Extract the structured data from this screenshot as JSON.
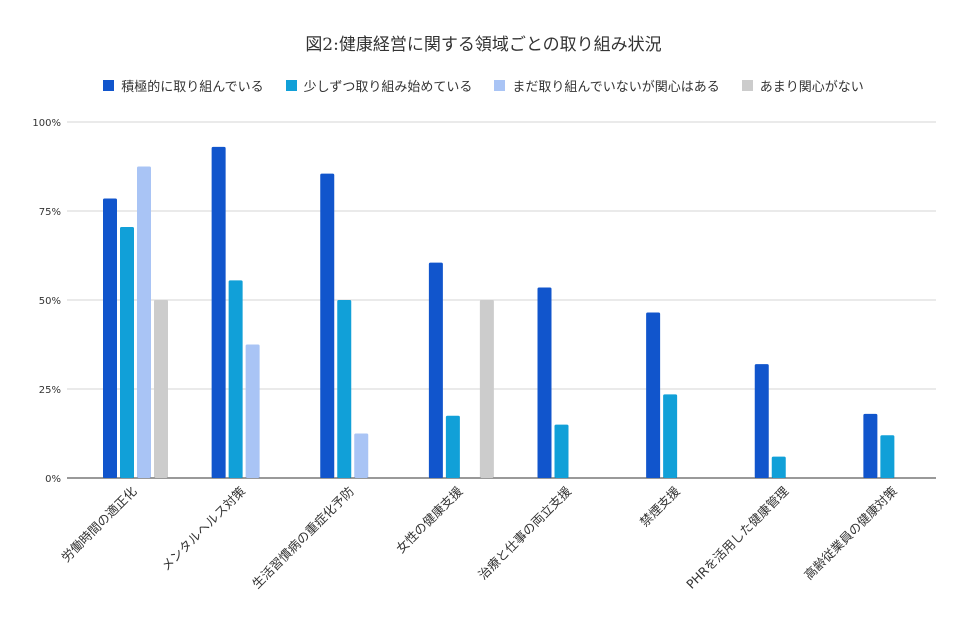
{
  "chart_data": {
    "type": "bar",
    "title": "図2:健康経営に関する領域ごとの取り組み状況",
    "xlabel": "",
    "ylabel": "",
    "ylim": [
      0,
      100
    ],
    "yticks": [
      "0%",
      "25%",
      "50%",
      "75%",
      "100%"
    ],
    "categories": [
      "労働時間の適正化",
      "メンタルヘルス対策",
      "生活習慣病の重症化予防",
      "女性の健康支援",
      "治療と仕事の両立支援",
      "禁煙支援",
      "PHRを活用した健康管理",
      "高齢従業員の健康対策"
    ],
    "legend_position": "top",
    "series": [
      {
        "name": "積極的に取り組んでいる",
        "color": "#1155cc",
        "values": [
          78.5,
          93,
          85.5,
          60.5,
          53.5,
          46.5,
          32,
          18
        ]
      },
      {
        "name": "少しずつ取り組み始めている",
        "color": "#11a0d8",
        "values": [
          70.5,
          55.5,
          50,
          17.5,
          15,
          23.5,
          6,
          12
        ]
      },
      {
        "name": "まだ取り組んでいないが関心はある",
        "color": "#a9c4f5",
        "values": [
          87.5,
          37.5,
          12.5,
          0,
          0,
          0,
          0,
          0
        ]
      },
      {
        "name": "あまり関心がない",
        "color": "#cccccc",
        "values": [
          50,
          0,
          0,
          50,
          0,
          0,
          0,
          0
        ]
      }
    ]
  }
}
